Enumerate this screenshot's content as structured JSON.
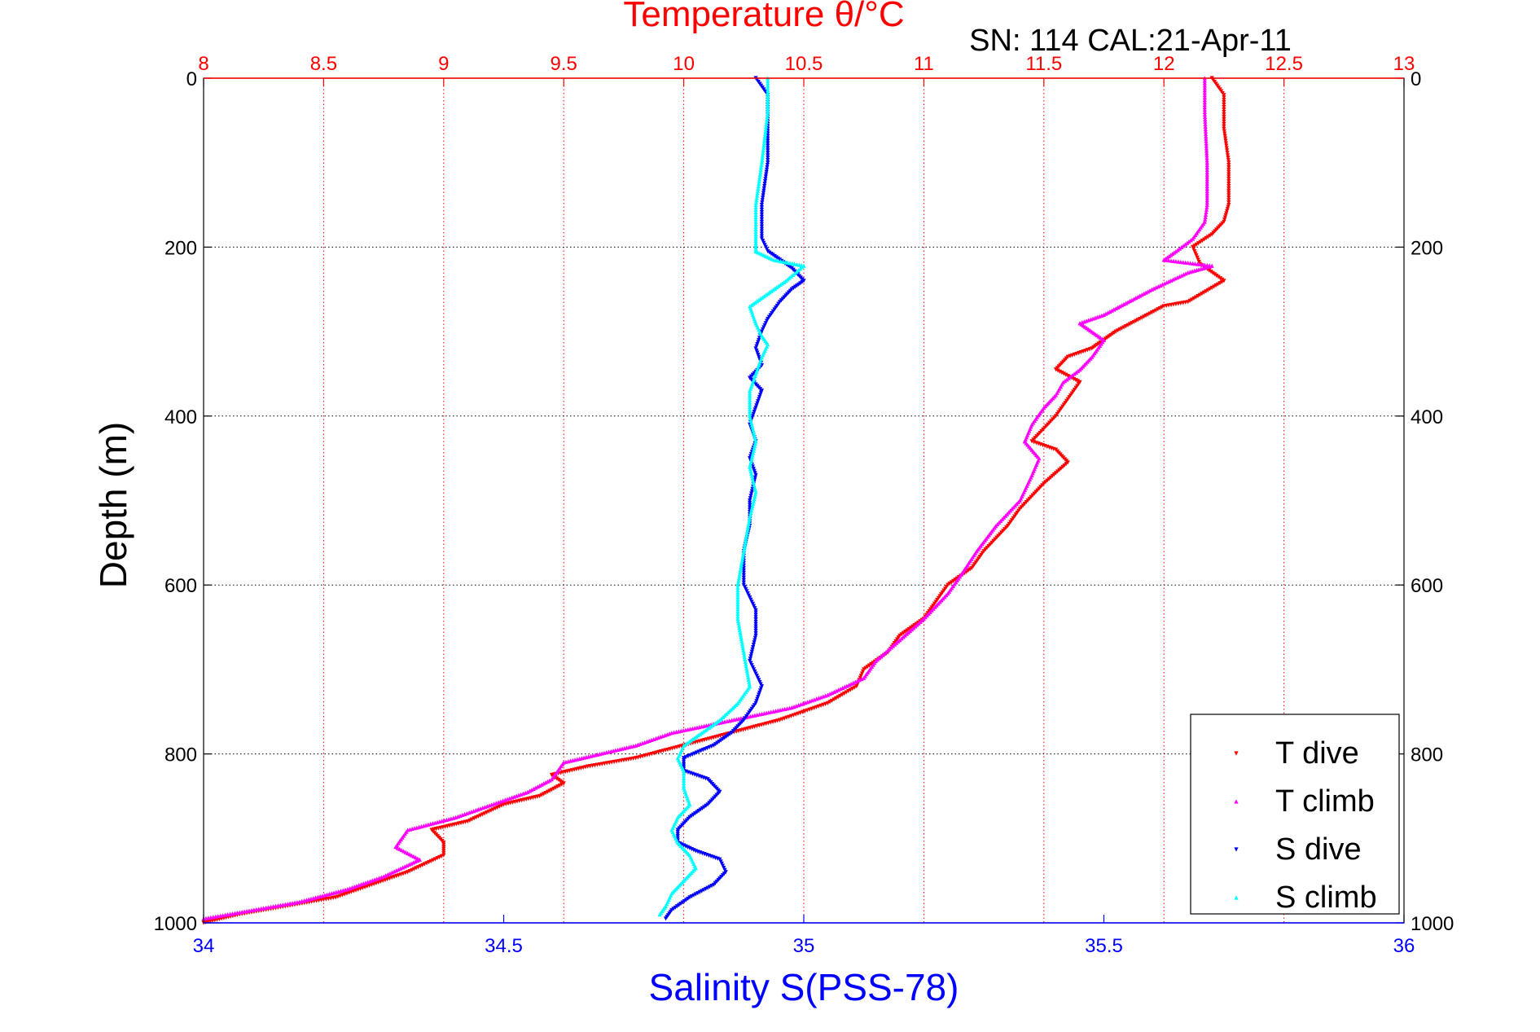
{
  "chart_data": {
    "type": "scatter",
    "title": "Temperature θ/°C",
    "subtitle": "SN: 114  CAL:21-Apr-11",
    "xlabel": "Salinity S(PSS-78)",
    "ylabel": "Depth (m)",
    "x_top_ticks": [
      "8",
      "8.5",
      "9",
      "9.5",
      "10",
      "10.5",
      "11",
      "11.5",
      "12",
      "12.5",
      "13"
    ],
    "x_bottom_ticks": [
      "34",
      "34.5",
      "35",
      "35.5",
      "36"
    ],
    "y_ticks": [
      "0",
      "200",
      "400",
      "600",
      "800",
      "1000"
    ],
    "temperature_axis": {
      "range": [
        8,
        13
      ],
      "position": "top",
      "grid": true
    },
    "salinity_axis": {
      "range": [
        34,
        36
      ],
      "position": "bottom"
    },
    "depth_axis": {
      "range": [
        0,
        1000
      ],
      "reversed": true,
      "grid": true
    },
    "legend_position": "bottom-right",
    "colors": {
      "title": "#ff0000",
      "temperature_axis": "#ff0000",
      "salinity_axis": "#0000ff",
      "grid_temperature": "#ff0000",
      "grid_depth": "#000000"
    },
    "series": [
      {
        "name": "T dive",
        "axis": "temperature",
        "color": "#ff0000",
        "marker": "triangle-down",
        "points": [
          [
            12.2,
            0
          ],
          [
            12.25,
            20
          ],
          [
            12.25,
            60
          ],
          [
            12.27,
            100
          ],
          [
            12.27,
            150
          ],
          [
            12.25,
            170
          ],
          [
            12.2,
            185
          ],
          [
            12.12,
            200
          ],
          [
            12.15,
            220
          ],
          [
            12.25,
            240
          ],
          [
            12.1,
            265
          ],
          [
            12.0,
            270
          ],
          [
            11.9,
            285
          ],
          [
            11.8,
            300
          ],
          [
            11.75,
            310
          ],
          [
            11.7,
            320
          ],
          [
            11.6,
            330
          ],
          [
            11.55,
            345
          ],
          [
            11.65,
            360
          ],
          [
            11.6,
            380
          ],
          [
            11.55,
            400
          ],
          [
            11.45,
            430
          ],
          [
            11.55,
            440
          ],
          [
            11.6,
            455
          ],
          [
            11.5,
            480
          ],
          [
            11.4,
            510
          ],
          [
            11.35,
            530
          ],
          [
            11.25,
            560
          ],
          [
            11.2,
            580
          ],
          [
            11.1,
            600
          ],
          [
            11.05,
            620
          ],
          [
            11.0,
            640
          ],
          [
            10.9,
            660
          ],
          [
            10.85,
            680
          ],
          [
            10.75,
            700
          ],
          [
            10.72,
            720
          ],
          [
            10.6,
            740
          ],
          [
            10.4,
            760
          ],
          [
            10.2,
            775
          ],
          [
            10.0,
            790
          ],
          [
            9.8,
            805
          ],
          [
            9.6,
            815
          ],
          [
            9.45,
            825
          ],
          [
            9.5,
            835
          ],
          [
            9.4,
            850
          ],
          [
            9.25,
            860
          ],
          [
            9.1,
            880
          ],
          [
            8.95,
            890
          ],
          [
            9.0,
            905
          ],
          [
            9.0,
            920
          ],
          [
            8.85,
            940
          ],
          [
            8.7,
            955
          ],
          [
            8.55,
            970
          ],
          [
            8.35,
            980
          ],
          [
            8.15,
            990
          ],
          [
            8.0,
            1000
          ]
        ]
      },
      {
        "name": "T climb",
        "axis": "temperature",
        "color": "#ff00ff",
        "marker": "triangle-up",
        "points": [
          [
            12.17,
            0
          ],
          [
            12.17,
            40
          ],
          [
            12.18,
            100
          ],
          [
            12.18,
            150
          ],
          [
            12.17,
            170
          ],
          [
            12.12,
            190
          ],
          [
            12.05,
            205
          ],
          [
            12.0,
            215
          ],
          [
            12.2,
            222
          ],
          [
            12.1,
            230
          ],
          [
            11.95,
            250
          ],
          [
            11.85,
            265
          ],
          [
            11.75,
            280
          ],
          [
            11.65,
            290
          ],
          [
            11.7,
            300
          ],
          [
            11.75,
            310
          ],
          [
            11.7,
            330
          ],
          [
            11.65,
            345
          ],
          [
            11.58,
            360
          ],
          [
            11.55,
            375
          ],
          [
            11.5,
            390
          ],
          [
            11.45,
            410
          ],
          [
            11.42,
            430
          ],
          [
            11.48,
            450
          ],
          [
            11.45,
            470
          ],
          [
            11.4,
            500
          ],
          [
            11.3,
            530
          ],
          [
            11.22,
            560
          ],
          [
            11.15,
            590
          ],
          [
            11.1,
            610
          ],
          [
            11.0,
            640
          ],
          [
            10.9,
            665
          ],
          [
            10.8,
            690
          ],
          [
            10.75,
            710
          ],
          [
            10.6,
            730
          ],
          [
            10.45,
            745
          ],
          [
            10.2,
            760
          ],
          [
            9.95,
            775
          ],
          [
            9.8,
            790
          ],
          [
            9.65,
            800
          ],
          [
            9.5,
            810
          ],
          [
            9.45,
            830
          ],
          [
            9.35,
            845
          ],
          [
            9.2,
            860
          ],
          [
            9.05,
            875
          ],
          [
            8.85,
            890
          ],
          [
            8.8,
            910
          ],
          [
            8.9,
            925
          ],
          [
            8.75,
            945
          ],
          [
            8.6,
            960
          ],
          [
            8.4,
            975
          ],
          [
            8.2,
            985
          ],
          [
            8.0,
            995
          ]
        ]
      },
      {
        "name": "S dive",
        "axis": "salinity",
        "color": "#0000ff",
        "marker": "triangle-down",
        "points": [
          [
            34.92,
            0
          ],
          [
            34.94,
            20
          ],
          [
            34.94,
            60
          ],
          [
            34.94,
            100
          ],
          [
            34.93,
            150
          ],
          [
            34.93,
            190
          ],
          [
            34.94,
            205
          ],
          [
            34.96,
            215
          ],
          [
            34.98,
            225
          ],
          [
            35.0,
            240
          ],
          [
            34.98,
            250
          ],
          [
            34.96,
            265
          ],
          [
            34.94,
            285
          ],
          [
            34.93,
            300
          ],
          [
            34.92,
            320
          ],
          [
            34.93,
            340
          ],
          [
            34.91,
            355
          ],
          [
            34.93,
            370
          ],
          [
            34.92,
            390
          ],
          [
            34.91,
            410
          ],
          [
            34.92,
            430
          ],
          [
            34.91,
            450
          ],
          [
            34.92,
            470
          ],
          [
            34.91,
            500
          ],
          [
            34.91,
            530
          ],
          [
            34.9,
            560
          ],
          [
            34.9,
            600
          ],
          [
            34.92,
            630
          ],
          [
            34.92,
            660
          ],
          [
            34.91,
            690
          ],
          [
            34.93,
            720
          ],
          [
            34.92,
            740
          ],
          [
            34.9,
            760
          ],
          [
            34.88,
            775
          ],
          [
            34.85,
            790
          ],
          [
            34.8,
            805
          ],
          [
            34.8,
            820
          ],
          [
            34.84,
            830
          ],
          [
            34.86,
            845
          ],
          [
            34.84,
            860
          ],
          [
            34.81,
            875
          ],
          [
            34.79,
            890
          ],
          [
            34.79,
            905
          ],
          [
            34.82,
            915
          ],
          [
            34.86,
            925
          ],
          [
            34.87,
            940
          ],
          [
            34.85,
            955
          ],
          [
            34.81,
            970
          ],
          [
            34.78,
            985
          ],
          [
            34.77,
            995
          ]
        ]
      },
      {
        "name": "S climb",
        "axis": "salinity",
        "color": "#00ffff",
        "marker": "triangle-up",
        "points": [
          [
            34.94,
            0
          ],
          [
            34.94,
            40
          ],
          [
            34.93,
            100
          ],
          [
            34.92,
            150
          ],
          [
            34.92,
            190
          ],
          [
            34.92,
            205
          ],
          [
            34.95,
            215
          ],
          [
            35.0,
            222
          ],
          [
            34.97,
            240
          ],
          [
            34.94,
            255
          ],
          [
            34.91,
            270
          ],
          [
            34.92,
            290
          ],
          [
            34.93,
            305
          ],
          [
            34.94,
            315
          ],
          [
            34.93,
            330
          ],
          [
            34.92,
            350
          ],
          [
            34.91,
            370
          ],
          [
            34.91,
            400
          ],
          [
            34.92,
            430
          ],
          [
            34.91,
            460
          ],
          [
            34.92,
            490
          ],
          [
            34.91,
            520
          ],
          [
            34.9,
            560
          ],
          [
            34.89,
            600
          ],
          [
            34.89,
            640
          ],
          [
            34.9,
            680
          ],
          [
            34.91,
            720
          ],
          [
            34.89,
            740
          ],
          [
            34.86,
            760
          ],
          [
            34.83,
            775
          ],
          [
            34.8,
            790
          ],
          [
            34.79,
            805
          ],
          [
            34.8,
            820
          ],
          [
            34.8,
            840
          ],
          [
            34.81,
            860
          ],
          [
            34.79,
            875
          ],
          [
            34.78,
            890
          ],
          [
            34.79,
            905
          ],
          [
            34.81,
            920
          ],
          [
            34.82,
            935
          ],
          [
            34.8,
            950
          ],
          [
            34.78,
            965
          ],
          [
            34.77,
            980
          ],
          [
            34.76,
            990
          ]
        ]
      }
    ]
  }
}
